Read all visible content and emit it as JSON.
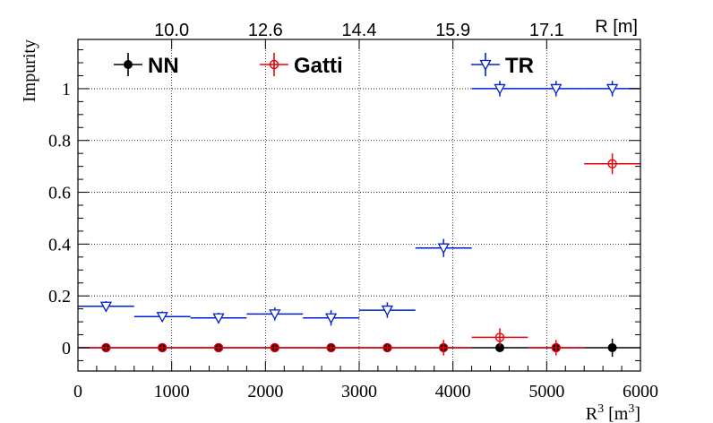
{
  "chart_data": {
    "type": "scatter",
    "xlabel": "R³ [m³]",
    "ylabel": "Impurity",
    "top_axis_label": "R [m]",
    "top_ticks": [
      {
        "x": 1000,
        "label": "10.0"
      },
      {
        "x": 2000,
        "label": "12.6"
      },
      {
        "x": 3000,
        "label": "14.4"
      },
      {
        "x": 4000,
        "label": "15.9"
      },
      {
        "x": 5000,
        "label": "17.1"
      }
    ],
    "xlim": [
      0,
      6000
    ],
    "ylim": [
      -0.09,
      1.19
    ],
    "xticks": [
      0,
      1000,
      2000,
      3000,
      4000,
      5000,
      6000
    ],
    "yticks": [
      0,
      0.2,
      0.4,
      0.6,
      0.8,
      1
    ],
    "grid": true,
    "legend_position": "top",
    "series": [
      {
        "name": "NN",
        "color": "#000000",
        "marker": "filled-circle",
        "points": [
          {
            "x": 300,
            "y": 0,
            "xerr": 300,
            "yerr": 0.012
          },
          {
            "x": 900,
            "y": 0,
            "xerr": 300,
            "yerr": 0.012
          },
          {
            "x": 1500,
            "y": 0,
            "xerr": 300,
            "yerr": 0.012
          },
          {
            "x": 2100,
            "y": 0,
            "xerr": 300,
            "yerr": 0.012
          },
          {
            "x": 2700,
            "y": 0,
            "xerr": 300,
            "yerr": 0.012
          },
          {
            "x": 3300,
            "y": 0,
            "xerr": 300,
            "yerr": 0.012
          },
          {
            "x": 3900,
            "y": 0,
            "xerr": 300,
            "yerr": 0.012
          },
          {
            "x": 4500,
            "y": 0,
            "xerr": 300,
            "yerr": 0.012
          },
          {
            "x": 5100,
            "y": 0,
            "xerr": 300,
            "yerr": 0.012
          },
          {
            "x": 5700,
            "y": 0,
            "xerr": 300,
            "yerr": 0.035
          }
        ]
      },
      {
        "name": "Gatti",
        "color": "#e8000b",
        "marker": "open-circle",
        "points": [
          {
            "x": 300,
            "y": 0,
            "xerr": 300,
            "yerr": 0.012
          },
          {
            "x": 900,
            "y": 0,
            "xerr": 300,
            "yerr": 0.012
          },
          {
            "x": 1500,
            "y": 0,
            "xerr": 300,
            "yerr": 0.012
          },
          {
            "x": 2100,
            "y": 0,
            "xerr": 300,
            "yerr": 0.012
          },
          {
            "x": 2700,
            "y": 0,
            "xerr": 300,
            "yerr": 0.012
          },
          {
            "x": 3300,
            "y": 0,
            "xerr": 300,
            "yerr": 0.012
          },
          {
            "x": 3900,
            "y": 0,
            "xerr": 300,
            "yerr": 0.03
          },
          {
            "x": 4500,
            "y": 0.04,
            "xerr": 300,
            "yerr": 0.035
          },
          {
            "x": 5100,
            "y": 0,
            "xerr": 300,
            "yerr": 0.03
          },
          {
            "x": 5700,
            "y": 0.71,
            "xerr": 300,
            "yerr": 0.04
          }
        ]
      },
      {
        "name": "TR",
        "color": "#0020d0",
        "marker": "open-triangle-down",
        "points": [
          {
            "x": 300,
            "y": 0.16,
            "xerr": 300,
            "yerr": 0.02
          },
          {
            "x": 900,
            "y": 0.12,
            "xerr": 300,
            "yerr": 0.02
          },
          {
            "x": 1500,
            "y": 0.115,
            "xerr": 300,
            "yerr": 0.02
          },
          {
            "x": 2100,
            "y": 0.13,
            "xerr": 300,
            "yerr": 0.025
          },
          {
            "x": 2700,
            "y": 0.115,
            "xerr": 300,
            "yerr": 0.03
          },
          {
            "x": 3300,
            "y": 0.145,
            "xerr": 300,
            "yerr": 0.03
          },
          {
            "x": 3900,
            "y": 0.385,
            "xerr": 300,
            "yerr": 0.035
          },
          {
            "x": 4500,
            "y": 1.0,
            "xerr": 300,
            "yerr": 0.03
          },
          {
            "x": 5100,
            "y": 1.0,
            "xerr": 300,
            "yerr": 0.03
          },
          {
            "x": 5700,
            "y": 1.0,
            "xerr": 300,
            "yerr": 0.03
          }
        ]
      }
    ]
  }
}
